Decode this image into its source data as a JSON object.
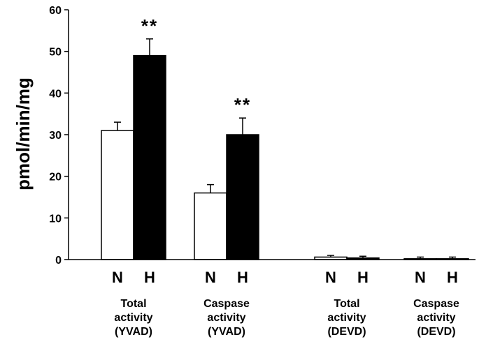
{
  "chart_data": {
    "type": "bar",
    "ylabel": "pmol/min/mg",
    "ylim": [
      0,
      60
    ],
    "yticks": [
      0,
      10,
      20,
      30,
      40,
      50,
      60
    ],
    "groups": [
      {
        "label_lines": [
          "Total",
          "activity",
          "(YVAD)"
        ],
        "bars": [
          {
            "label": "N",
            "value": 31,
            "error": 2,
            "fill": "#ffffff",
            "sig": ""
          },
          {
            "label": "H",
            "value": 49,
            "error": 4,
            "fill": "#000000",
            "sig": "**"
          }
        ]
      },
      {
        "label_lines": [
          "Caspase",
          "activity",
          "(YVAD)"
        ],
        "bars": [
          {
            "label": "N",
            "value": 16,
            "error": 2,
            "fill": "#ffffff",
            "sig": ""
          },
          {
            "label": "H",
            "value": 30,
            "error": 4,
            "fill": "#000000",
            "sig": "**"
          }
        ]
      },
      {
        "label_lines": [
          "Total",
          "activity",
          "(DEVD)"
        ],
        "bars": [
          {
            "label": "N",
            "value": 0.6,
            "error": 0.4,
            "fill": "#ffffff",
            "sig": ""
          },
          {
            "label": "H",
            "value": 0.4,
            "error": 0.4,
            "fill": "#000000",
            "sig": ""
          }
        ]
      },
      {
        "label_lines": [
          "Caspase",
          "activity",
          "(DEVD)"
        ],
        "bars": [
          {
            "label": "N",
            "value": 0.2,
            "error": 0.4,
            "fill": "#ffffff",
            "sig": ""
          },
          {
            "label": "H",
            "value": 0.2,
            "error": 0.4,
            "fill": "#000000",
            "sig": ""
          }
        ]
      }
    ]
  }
}
